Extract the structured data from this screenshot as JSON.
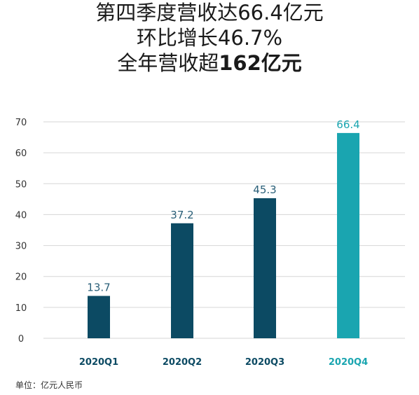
{
  "title": {
    "line1": "第四季度营收达66.4亿元",
    "line2": "环比增长46.7%",
    "line3_prefix": "全年营收超",
    "line3_bold": "162亿元"
  },
  "footnote": "单位：亿元人民币",
  "colors": {
    "bar_primary": "#0c4a63",
    "bar_highlight": "#1aa5b0",
    "value_label_primary": "#2a5f78",
    "value_label_highlight": "#1aa5b0",
    "category_label_primary": "#0c4a63",
    "category_label_highlight": "#1aa5b0",
    "grid": "#d6d6d6",
    "axis_tick_label": "#333333"
  },
  "chart_data": {
    "type": "bar",
    "categories": [
      "2020Q1",
      "2020Q2",
      "2020Q3",
      "2020Q4"
    ],
    "values": [
      13.7,
      37.2,
      45.3,
      66.4
    ],
    "value_labels": [
      "13.7",
      "37.2",
      "45.3",
      "66.4"
    ],
    "highlight_index": 3,
    "ylim": [
      0,
      70
    ],
    "yticks": [
      0,
      10,
      20,
      30,
      40,
      50,
      60,
      70
    ],
    "ytick_labels": [
      "0",
      "10",
      "20",
      "30",
      "40",
      "50",
      "60",
      "70"
    ],
    "grid": true,
    "xlabel": "",
    "ylabel": ""
  }
}
